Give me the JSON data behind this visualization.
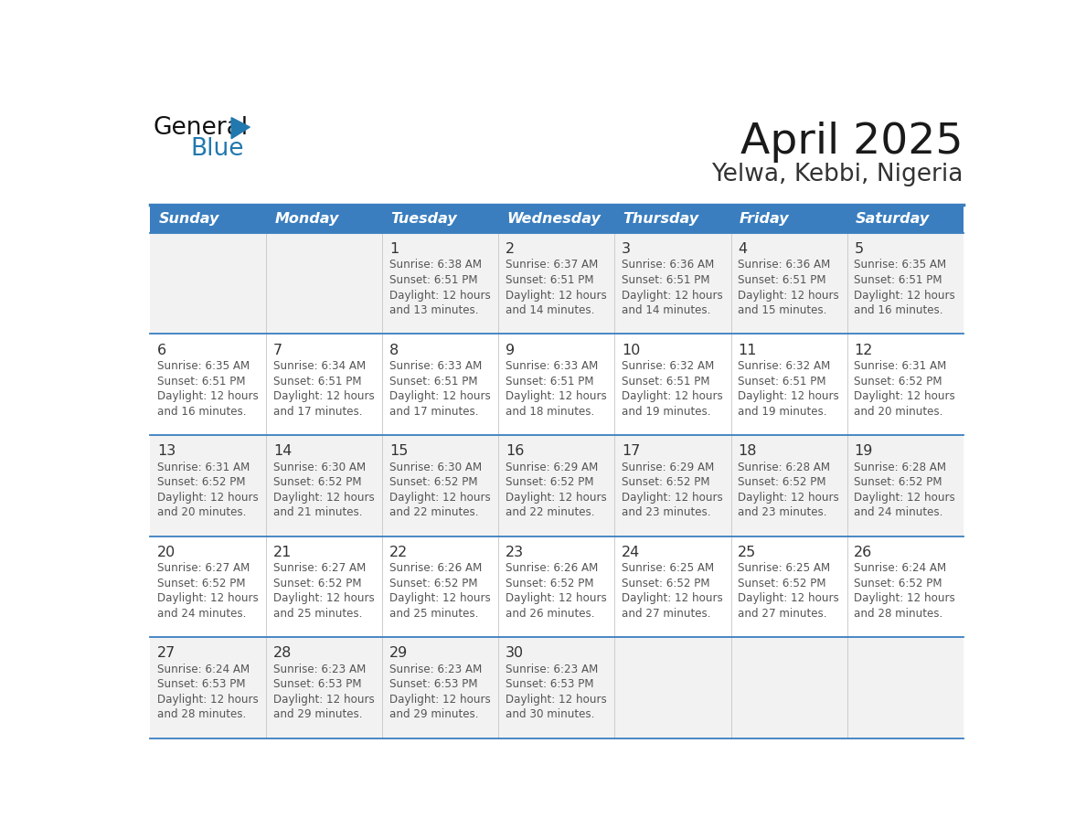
{
  "title": "April 2025",
  "subtitle": "Yelwa, Kebbi, Nigeria",
  "days_of_week": [
    "Sunday",
    "Monday",
    "Tuesday",
    "Wednesday",
    "Thursday",
    "Friday",
    "Saturday"
  ],
  "header_bg": "#3A7EBF",
  "header_text": "#FFFFFF",
  "row_bg": [
    "#F2F2F2",
    "#FFFFFF",
    "#F2F2F2",
    "#FFFFFF",
    "#F2F2F2"
  ],
  "line_color": "#3A7EBF",
  "day_num_color": "#333333",
  "cell_text_color": "#555555",
  "calendar_data": [
    [
      null,
      null,
      {
        "day": 1,
        "sunrise": "6:38 AM",
        "sunset": "6:51 PM",
        "daylight_l1": "12 hours",
        "daylight_l2": "and 13 minutes."
      },
      {
        "day": 2,
        "sunrise": "6:37 AM",
        "sunset": "6:51 PM",
        "daylight_l1": "12 hours",
        "daylight_l2": "and 14 minutes."
      },
      {
        "day": 3,
        "sunrise": "6:36 AM",
        "sunset": "6:51 PM",
        "daylight_l1": "12 hours",
        "daylight_l2": "and 14 minutes."
      },
      {
        "day": 4,
        "sunrise": "6:36 AM",
        "sunset": "6:51 PM",
        "daylight_l1": "12 hours",
        "daylight_l2": "and 15 minutes."
      },
      {
        "day": 5,
        "sunrise": "6:35 AM",
        "sunset": "6:51 PM",
        "daylight_l1": "12 hours",
        "daylight_l2": "and 16 minutes."
      }
    ],
    [
      {
        "day": 6,
        "sunrise": "6:35 AM",
        "sunset": "6:51 PM",
        "daylight_l1": "12 hours",
        "daylight_l2": "and 16 minutes."
      },
      {
        "day": 7,
        "sunrise": "6:34 AM",
        "sunset": "6:51 PM",
        "daylight_l1": "12 hours",
        "daylight_l2": "and 17 minutes."
      },
      {
        "day": 8,
        "sunrise": "6:33 AM",
        "sunset": "6:51 PM",
        "daylight_l1": "12 hours",
        "daylight_l2": "and 17 minutes."
      },
      {
        "day": 9,
        "sunrise": "6:33 AM",
        "sunset": "6:51 PM",
        "daylight_l1": "12 hours",
        "daylight_l2": "and 18 minutes."
      },
      {
        "day": 10,
        "sunrise": "6:32 AM",
        "sunset": "6:51 PM",
        "daylight_l1": "12 hours",
        "daylight_l2": "and 19 minutes."
      },
      {
        "day": 11,
        "sunrise": "6:32 AM",
        "sunset": "6:51 PM",
        "daylight_l1": "12 hours",
        "daylight_l2": "and 19 minutes."
      },
      {
        "day": 12,
        "sunrise": "6:31 AM",
        "sunset": "6:52 PM",
        "daylight_l1": "12 hours",
        "daylight_l2": "and 20 minutes."
      }
    ],
    [
      {
        "day": 13,
        "sunrise": "6:31 AM",
        "sunset": "6:52 PM",
        "daylight_l1": "12 hours",
        "daylight_l2": "and 20 minutes."
      },
      {
        "day": 14,
        "sunrise": "6:30 AM",
        "sunset": "6:52 PM",
        "daylight_l1": "12 hours",
        "daylight_l2": "and 21 minutes."
      },
      {
        "day": 15,
        "sunrise": "6:30 AM",
        "sunset": "6:52 PM",
        "daylight_l1": "12 hours",
        "daylight_l2": "and 22 minutes."
      },
      {
        "day": 16,
        "sunrise": "6:29 AM",
        "sunset": "6:52 PM",
        "daylight_l1": "12 hours",
        "daylight_l2": "and 22 minutes."
      },
      {
        "day": 17,
        "sunrise": "6:29 AM",
        "sunset": "6:52 PM",
        "daylight_l1": "12 hours",
        "daylight_l2": "and 23 minutes."
      },
      {
        "day": 18,
        "sunrise": "6:28 AM",
        "sunset": "6:52 PM",
        "daylight_l1": "12 hours",
        "daylight_l2": "and 23 minutes."
      },
      {
        "day": 19,
        "sunrise": "6:28 AM",
        "sunset": "6:52 PM",
        "daylight_l1": "12 hours",
        "daylight_l2": "and 24 minutes."
      }
    ],
    [
      {
        "day": 20,
        "sunrise": "6:27 AM",
        "sunset": "6:52 PM",
        "daylight_l1": "12 hours",
        "daylight_l2": "and 24 minutes."
      },
      {
        "day": 21,
        "sunrise": "6:27 AM",
        "sunset": "6:52 PM",
        "daylight_l1": "12 hours",
        "daylight_l2": "and 25 minutes."
      },
      {
        "day": 22,
        "sunrise": "6:26 AM",
        "sunset": "6:52 PM",
        "daylight_l1": "12 hours",
        "daylight_l2": "and 25 minutes."
      },
      {
        "day": 23,
        "sunrise": "6:26 AM",
        "sunset": "6:52 PM",
        "daylight_l1": "12 hours",
        "daylight_l2": "and 26 minutes."
      },
      {
        "day": 24,
        "sunrise": "6:25 AM",
        "sunset": "6:52 PM",
        "daylight_l1": "12 hours",
        "daylight_l2": "and 27 minutes."
      },
      {
        "day": 25,
        "sunrise": "6:25 AM",
        "sunset": "6:52 PM",
        "daylight_l1": "12 hours",
        "daylight_l2": "and 27 minutes."
      },
      {
        "day": 26,
        "sunrise": "6:24 AM",
        "sunset": "6:52 PM",
        "daylight_l1": "12 hours",
        "daylight_l2": "and 28 minutes."
      }
    ],
    [
      {
        "day": 27,
        "sunrise": "6:24 AM",
        "sunset": "6:53 PM",
        "daylight_l1": "12 hours",
        "daylight_l2": "and 28 minutes."
      },
      {
        "day": 28,
        "sunrise": "6:23 AM",
        "sunset": "6:53 PM",
        "daylight_l1": "12 hours",
        "daylight_l2": "and 29 minutes."
      },
      {
        "day": 29,
        "sunrise": "6:23 AM",
        "sunset": "6:53 PM",
        "daylight_l1": "12 hours",
        "daylight_l2": "and 29 minutes."
      },
      {
        "day": 30,
        "sunrise": "6:23 AM",
        "sunset": "6:53 PM",
        "daylight_l1": "12 hours",
        "daylight_l2": "and 30 minutes."
      },
      null,
      null,
      null
    ]
  ],
  "logo_color_general": "#111111",
  "logo_color_blue": "#2178AE",
  "logo_triangle_color": "#2178AE",
  "title_color": "#1a1a1a",
  "subtitle_color": "#333333"
}
